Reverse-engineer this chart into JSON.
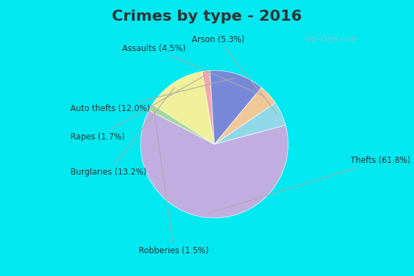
{
  "title": "Crimes by type - 2016",
  "title_fontsize": 16,
  "title_color": "#333333",
  "background_cyan": "#00e8f0",
  "background_inner": "#d8ede0",
  "watermark": "  City-Data.com",
  "pie_order": [
    "Thefts",
    "Robberies",
    "Burglaries",
    "Rapes",
    "Auto thefts",
    "Assaults",
    "Arson"
  ],
  "values": [
    61.8,
    1.5,
    13.2,
    1.7,
    12.0,
    4.5,
    5.3
  ],
  "colors": [
    "#c0aee0",
    "#a8d898",
    "#f0f09a",
    "#f0a8a8",
    "#7888d8",
    "#f0c898",
    "#90d8e8"
  ],
  "label_texts": [
    "Thefts (61.8%)",
    "Robberies (1.5%)",
    "Burglaries (13.2%)",
    "Rapes (1.7%)",
    "Auto thefts (12.0%)",
    "Assaults (4.5%)",
    "Arson (5.3%)"
  ],
  "startangle": 15,
  "label_font_color": "#333333",
  "label_fontsize": 8.5,
  "connector_color": "#aaaaaa",
  "connector_lw": 0.8
}
